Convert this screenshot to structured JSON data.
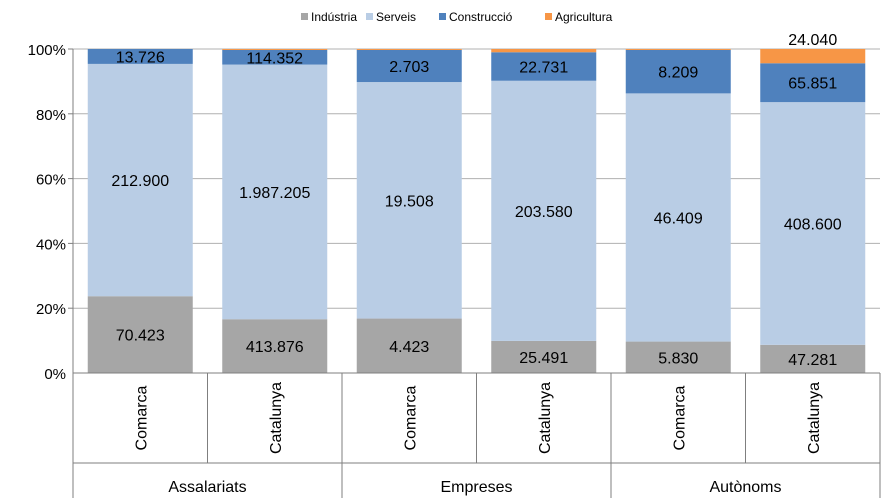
{
  "chart_data": {
    "type": "bar",
    "stacked": "percent",
    "legend": {
      "position": "top",
      "items": [
        {
          "name": "Indústria",
          "color": "#a6a6a6"
        },
        {
          "name": "Serveis",
          "color": "#b9cde5"
        },
        {
          "name": "Construcció",
          "color": "#4f81bd"
        },
        {
          "name": "Agricultura",
          "color": "#f79646"
        }
      ]
    },
    "categories": [
      {
        "label": "Comarca",
        "group": "Assalariats"
      },
      {
        "label": "Catalunya",
        "group": "Assalariats"
      },
      {
        "label": "Comarca",
        "group": "Empreses"
      },
      {
        "label": "Catalunya",
        "group": "Empreses"
      },
      {
        "label": "Comarca",
        "group": "Autònoms"
      },
      {
        "label": "Catalunya",
        "group": "Autònoms"
      }
    ],
    "groups": [
      "Assalariats",
      "Empreses",
      "Autònoms"
    ],
    "series": [
      {
        "name": "Indústria",
        "color": "#a6a6a6",
        "percent": [
          23.7,
          16.6,
          16.8,
          9.9,
          9.7,
          8.7
        ],
        "labels": [
          "70.423",
          "413.876",
          "4.423",
          "25.491",
          "5.830",
          "47.281"
        ]
      },
      {
        "name": "Serveis",
        "color": "#b9cde5",
        "percent": [
          71.7,
          78.6,
          73.0,
          80.3,
          76.6,
          74.9
        ],
        "labels": [
          "212.900",
          "1.987.205",
          "19.508",
          "203.580",
          "46.409",
          "408.600"
        ]
      },
      {
        "name": "Construcció",
        "color": "#4f81bd",
        "percent": [
          4.6,
          4.5,
          9.9,
          8.8,
          13.4,
          12.0
        ],
        "labels": [
          "13.726",
          "114.352",
          "2.703",
          "22.731",
          "8.209",
          "65.851"
        ]
      },
      {
        "name": "Agricultura",
        "color": "#f79646",
        "percent": [
          0.0,
          0.3,
          0.3,
          1.0,
          0.3,
          4.4
        ],
        "labels": [
          "",
          "",
          "",
          "",
          "",
          "24.040"
        ]
      }
    ],
    "yaxis": {
      "ticks": [
        "0%",
        "20%",
        "40%",
        "60%",
        "80%",
        "100%"
      ],
      "min": 0,
      "max": 100
    },
    "grid": true
  }
}
